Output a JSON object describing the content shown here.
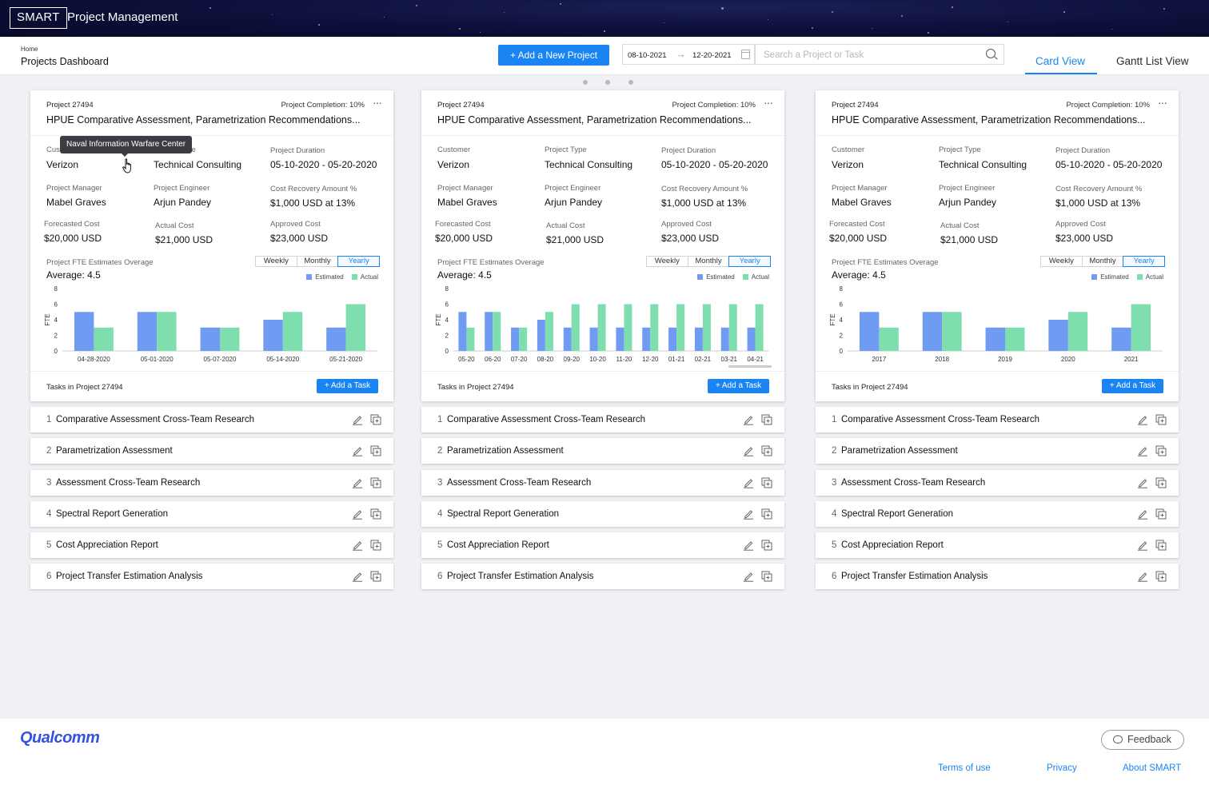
{
  "app": {
    "logo": "SMART",
    "title": "Project Management"
  },
  "header": {
    "breadcrumb": "Home",
    "page_title": "Projects Dashboard",
    "new_project_label": "+ Add a New Project",
    "date_start": "08-10-2021",
    "date_end": "12-20-2021",
    "search_placeholder": "Search a Project or Task",
    "tabs": [
      {
        "label": "Card View",
        "active": true
      },
      {
        "label": "Gantt List View",
        "active": false
      }
    ]
  },
  "colors": {
    "accent": "#1a84f2",
    "estimated": "#6f9bf2",
    "actual": "#7fdeae"
  },
  "tooltip": "Naval Information Warfare Center",
  "cards": [
    {
      "project_id": "Project 27494",
      "completion": "Project Completion: 10%",
      "title": "HPUE Comparative Assessment, Parametrization Recommendations...",
      "fields": [
        {
          "label": "Customer",
          "value": "Verizon"
        },
        {
          "label": "Project Type",
          "value": "Technical Consulting"
        },
        {
          "label": "Project Duration",
          "value": "05-10-2020 - 05-20-2020"
        },
        {
          "label": "Project Manager",
          "value": "Mabel Graves"
        },
        {
          "label": "Project Engineer",
          "value": "Arjun Pandey"
        },
        {
          "label": "Cost Recovery Amount %",
          "value": "$1,000 USD at 13%"
        },
        {
          "label": "Forecasted Cost",
          "value": "$20,000 USD"
        },
        {
          "label": "Actual Cost",
          "value": "$21,000 USD"
        },
        {
          "label": "Approved Cost",
          "value": "$23,000 USD"
        }
      ],
      "fte_title": "Project FTE Estimates Overage",
      "average": "Average: 4.5",
      "periods": [
        "Weekly",
        "Monthly",
        "Yearly"
      ],
      "active_period": "Yearly",
      "tasks_label": "Tasks in Project 27494",
      "add_task_label": "+ Add a Task"
    },
    {
      "project_id": "Project 27494",
      "completion": "Project Completion: 10%",
      "title": "HPUE Comparative Assessment, Parametrization Recommendations...",
      "fields": [
        {
          "label": "Customer",
          "value": "Verizon"
        },
        {
          "label": "Project Type",
          "value": "Technical Consulting"
        },
        {
          "label": "Project Duration",
          "value": "05-10-2020 - 05-20-2020"
        },
        {
          "label": "Project Manager",
          "value": "Mabel Graves"
        },
        {
          "label": "Project Engineer",
          "value": "Arjun Pandey"
        },
        {
          "label": "Cost Recovery Amount %",
          "value": "$1,000 USD at 13%"
        },
        {
          "label": "Forecasted Cost",
          "value": "$20,000 USD"
        },
        {
          "label": "Actual Cost",
          "value": "$21,000 USD"
        },
        {
          "label": "Approved Cost",
          "value": "$23,000 USD"
        }
      ],
      "fte_title": "Project FTE Estimates Overage",
      "average": "Average: 4.5",
      "periods": [
        "Weekly",
        "Monthly",
        "Yearly"
      ],
      "active_period": "Yearly",
      "tasks_label": "Tasks in Project 27494",
      "add_task_label": "+ Add a Task"
    },
    {
      "project_id": "Project 27494",
      "completion": "Project Completion: 10%",
      "title": "HPUE Comparative Assessment, Parametrization Recommendations...",
      "fields": [
        {
          "label": "Customer",
          "value": "Verizon"
        },
        {
          "label": "Project Type",
          "value": "Technical Consulting"
        },
        {
          "label": "Project Duration",
          "value": "05-10-2020 - 05-20-2020"
        },
        {
          "label": "Project Manager",
          "value": "Mabel Graves"
        },
        {
          "label": "Project Engineer",
          "value": "Arjun Pandey"
        },
        {
          "label": "Cost Recovery Amount %",
          "value": "$1,000 USD at 13%"
        },
        {
          "label": "Forecasted Cost",
          "value": "$20,000 USD"
        },
        {
          "label": "Actual Cost",
          "value": "$21,000 USD"
        },
        {
          "label": "Approved Cost",
          "value": "$23,000 USD"
        }
      ],
      "fte_title": "Project FTE Estimates Overage",
      "average": "Average: 4.5",
      "periods": [
        "Weekly",
        "Monthly",
        "Yearly"
      ],
      "active_period": "Yearly",
      "tasks_label": "Tasks in Project 27494",
      "add_task_label": "+ Add a Task"
    }
  ],
  "tasks": [
    {
      "num": "1",
      "name": "Comparative Assessment Cross-Team Research"
    },
    {
      "num": "2",
      "name": "Parametrization Assessment"
    },
    {
      "num": "3",
      "name": "Assessment Cross-Team Research"
    },
    {
      "num": "4",
      "name": "Spectral Report Generation"
    },
    {
      "num": "5",
      "name": "Cost Appreciation Report"
    },
    {
      "num": "6",
      "name": "Project Transfer Estimation Analysis"
    }
  ],
  "chart_data": [
    {
      "type": "bar",
      "ylabel": "FTE",
      "ylim": [
        0,
        8
      ],
      "yticks": [
        0,
        2,
        4,
        6,
        8
      ],
      "legend": "top-right",
      "categories": [
        "04-28-2020",
        "05-01-2020",
        "05-07-2020",
        "05-14-2020",
        "05-21-2020"
      ],
      "series": [
        {
          "name": "Estimated",
          "values": [
            5,
            5,
            3,
            4,
            3
          ]
        },
        {
          "name": "Actual",
          "values": [
            3,
            5,
            3,
            5,
            6
          ]
        }
      ]
    },
    {
      "type": "bar",
      "ylabel": "FTE",
      "ylim": [
        0,
        8
      ],
      "yticks": [
        0,
        2,
        4,
        6,
        8
      ],
      "legend": "top-right",
      "categories": [
        "05-20",
        "06-20",
        "07-20",
        "08-20",
        "09-20",
        "10-20",
        "11-20",
        "12-20",
        "01-21",
        "02-21",
        "03-21",
        "04-21"
      ],
      "series": [
        {
          "name": "Estimated",
          "values": [
            5,
            5,
            3,
            4,
            3,
            3,
            3,
            3,
            3,
            3,
            3,
            3
          ]
        },
        {
          "name": "Actual",
          "values": [
            3,
            5,
            3,
            5,
            6,
            6,
            6,
            6,
            6,
            6,
            6,
            6
          ]
        }
      ]
    },
    {
      "type": "bar",
      "ylabel": "FTE",
      "ylim": [
        0,
        8
      ],
      "yticks": [
        0,
        2,
        4,
        6,
        8
      ],
      "legend": "top-right",
      "categories": [
        "2017",
        "2018",
        "2019",
        "2020",
        "2021"
      ],
      "series": [
        {
          "name": "Estimated",
          "values": [
            5,
            5,
            3,
            4,
            3
          ]
        },
        {
          "name": "Actual",
          "values": [
            3,
            5,
            3,
            5,
            6
          ]
        }
      ]
    }
  ],
  "footer": {
    "brand": "Qualcomm",
    "feedback_label": "Feedback",
    "links": [
      "Terms of use",
      "Privacy",
      "About SMART"
    ]
  }
}
